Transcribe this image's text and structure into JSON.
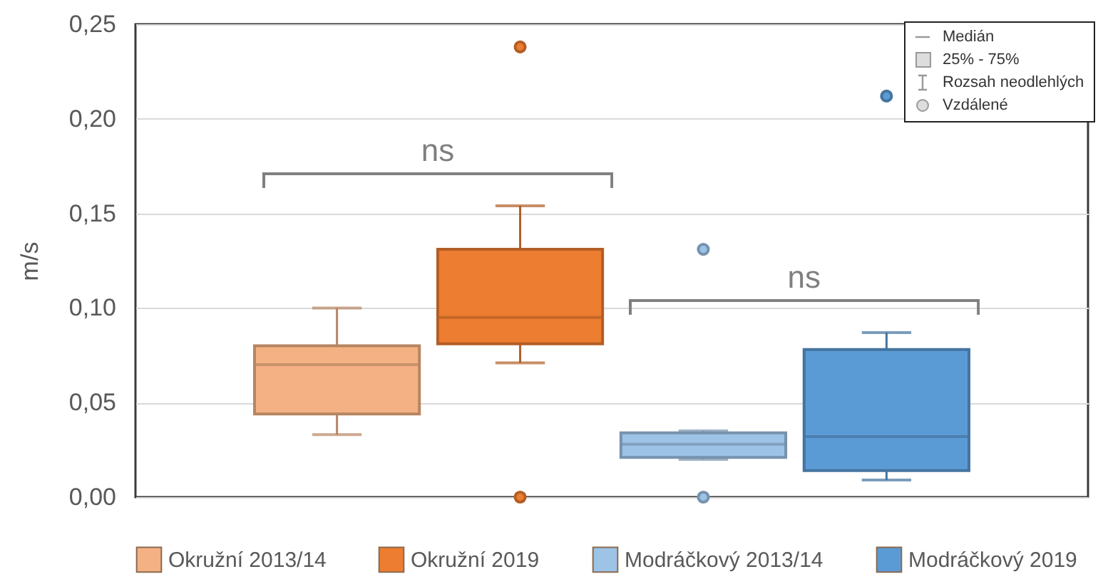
{
  "chart_data": {
    "type": "box",
    "ylabel": "m/s",
    "categories": [
      null
    ],
    "series": [
      {
        "name": "Okružní 2013/14",
        "color": "#f4b183",
        "boxes": [
          {
            "low": 0.033,
            "q1": 0.044,
            "median": 0.07,
            "q3": 0.08,
            "high": 0.1
          }
        ]
      },
      {
        "name": "Okružní 2019",
        "color": "#ed7d31",
        "boxes": [
          {
            "low": 0.071,
            "q1": 0.081,
            "median": 0.095,
            "q3": 0.131,
            "high": 0.154,
            "outliers": [
              0.238,
              0
            ]
          }
        ]
      },
      {
        "name": "Modráčkový 2013/14",
        "color": "#9dc3e6",
        "boxes": [
          {
            "low": 0.02,
            "q1": 0.021,
            "median": 0.028,
            "q3": 0.034,
            "high": 0.035,
            "outliers": [
              0.131,
              0
            ]
          }
        ]
      },
      {
        "name": "Modráčkový 2019",
        "color": "#5b9bd5",
        "boxes": [
          {
            "low": 0.009,
            "q1": 0.014,
            "median": 0.032,
            "q3": 0.078,
            "high": 0.087,
            "outliers": [
              0.212
            ]
          }
        ]
      }
    ],
    "ylim": [
      0,
      0.25
    ],
    "yticks": [
      {
        "value": 0,
        "label": "0,00"
      },
      {
        "value": 0.05,
        "label": "0,05"
      },
      {
        "value": 0.1,
        "label": "0,10"
      },
      {
        "value": 0.15,
        "label": "0,15"
      },
      {
        "value": 0.2,
        "label": "0,20"
      },
      {
        "value": 0.25,
        "label": "0,25"
      }
    ],
    "grid": "y",
    "legend": "bottom",
    "tick_labels": "y",
    "annotations": [
      "ns",
      "ns",
      "Medián",
      "25% - 75%",
      "Rozsah neodlehlých",
      "Vzdálené"
    ]
  }
}
